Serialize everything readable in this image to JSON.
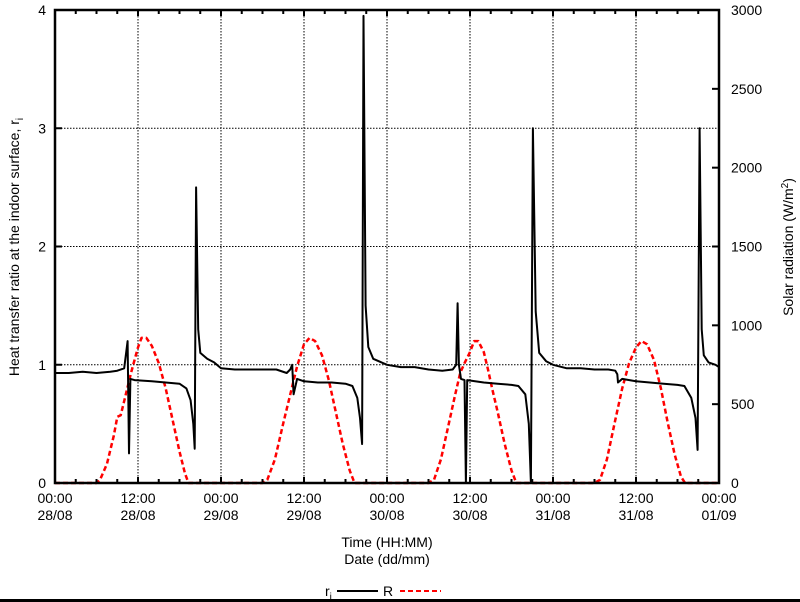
{
  "chart_data": {
    "type": "line",
    "title": "",
    "xlabel": "Time (HH:MM)",
    "xlabel2": "Date (dd/mm)",
    "ylabel": "Heat transfer ratio at the indoor surface, r",
    "ylabel_sub": "i",
    "y2label": "Solar radiation (W/m",
    "y2label_sup": "2",
    "y2label_end": ")",
    "xlim_hours": [
      0,
      96
    ],
    "ylim": [
      0,
      4
    ],
    "y2lim": [
      0,
      3000
    ],
    "grid": true,
    "legend_position": "bottom-center",
    "x_ticks": [
      {
        "hour": 0,
        "time": "00:00",
        "date": "28/08"
      },
      {
        "hour": 12,
        "time": "12:00",
        "date": "28/08"
      },
      {
        "hour": 24,
        "time": "00:00",
        "date": "29/08"
      },
      {
        "hour": 36,
        "time": "12:00",
        "date": "29/08"
      },
      {
        "hour": 48,
        "time": "00:00",
        "date": "30/08"
      },
      {
        "hour": 60,
        "time": "12:00",
        "date": "30/08"
      },
      {
        "hour": 72,
        "time": "00:00",
        "date": "31/08"
      },
      {
        "hour": 84,
        "time": "12:00",
        "date": "31/08"
      },
      {
        "hour": 96,
        "time": "00:00",
        "date": "01/09"
      }
    ],
    "y_ticks": [
      "0",
      "1",
      "2",
      "3",
      "4"
    ],
    "y2_ticks": [
      "0",
      "500",
      "1000",
      "1500",
      "2000",
      "2500",
      "3000"
    ],
    "series": [
      {
        "name": "r",
        "name_sub": "i",
        "axis": "left",
        "color": "#000000",
        "style": "solid",
        "points": [
          [
            0,
            0.93
          ],
          [
            2,
            0.93
          ],
          [
            4,
            0.94
          ],
          [
            6,
            0.93
          ],
          [
            8,
            0.94
          ],
          [
            9,
            0.95
          ],
          [
            10,
            0.97
          ],
          [
            10.5,
            1.2
          ],
          [
            10.7,
            0.25
          ],
          [
            10.9,
            0.88
          ],
          [
            11.5,
            0.87
          ],
          [
            14,
            0.86
          ],
          [
            16,
            0.85
          ],
          [
            18,
            0.84
          ],
          [
            19,
            0.8
          ],
          [
            19.6,
            0.7
          ],
          [
            20,
            0.5
          ],
          [
            20.2,
            0.29
          ],
          [
            20.4,
            2.5
          ],
          [
            20.7,
            1.3
          ],
          [
            21,
            1.1
          ],
          [
            22,
            1.05
          ],
          [
            23,
            1.02
          ],
          [
            24,
            0.97
          ],
          [
            26,
            0.96
          ],
          [
            28,
            0.96
          ],
          [
            30,
            0.96
          ],
          [
            32,
            0.96
          ],
          [
            33.5,
            0.93
          ],
          [
            34,
            0.96
          ],
          [
            34.3,
            1.0
          ],
          [
            34.5,
            0.75
          ],
          [
            35,
            0.88
          ],
          [
            36,
            0.86
          ],
          [
            38,
            0.85
          ],
          [
            40,
            0.85
          ],
          [
            42,
            0.84
          ],
          [
            43,
            0.82
          ],
          [
            43.7,
            0.72
          ],
          [
            44.1,
            0.55
          ],
          [
            44.4,
            0.33
          ],
          [
            44.6,
            3.95
          ],
          [
            44.9,
            1.5
          ],
          [
            45.3,
            1.15
          ],
          [
            46,
            1.05
          ],
          [
            48,
            1.0
          ],
          [
            50,
            0.98
          ],
          [
            52,
            0.98
          ],
          [
            54,
            0.96
          ],
          [
            56,
            0.95
          ],
          [
            57.5,
            0.96
          ],
          [
            58,
            1.0
          ],
          [
            58.2,
            1.52
          ],
          [
            58.4,
            1.0
          ],
          [
            58.7,
            0.88
          ],
          [
            59.2,
            0.87
          ],
          [
            59.4,
            0
          ],
          [
            59.6,
            0.87
          ],
          [
            62,
            0.85
          ],
          [
            64,
            0.84
          ],
          [
            66,
            0.83
          ],
          [
            67,
            0.82
          ],
          [
            68,
            0.75
          ],
          [
            68.5,
            0.5
          ],
          [
            68.8,
            0
          ],
          [
            69.1,
            3.0
          ],
          [
            69.5,
            1.45
          ],
          [
            70,
            1.1
          ],
          [
            71,
            1.03
          ],
          [
            72,
            1.0
          ],
          [
            74,
            0.97
          ],
          [
            76,
            0.97
          ],
          [
            78,
            0.96
          ],
          [
            80,
            0.96
          ],
          [
            81,
            0.95
          ],
          [
            81.3,
            0.92
          ],
          [
            81.4,
            0.85
          ],
          [
            82,
            0.88
          ],
          [
            84,
            0.86
          ],
          [
            86,
            0.85
          ],
          [
            88,
            0.84
          ],
          [
            90,
            0.83
          ],
          [
            91,
            0.82
          ],
          [
            92,
            0.72
          ],
          [
            92.6,
            0.55
          ],
          [
            92.9,
            0.28
          ],
          [
            93.2,
            3.0
          ],
          [
            93.5,
            1.3
          ],
          [
            93.8,
            1.08
          ],
          [
            94.5,
            1.02
          ],
          [
            95.5,
            1.0
          ],
          [
            96,
            0.98
          ]
        ]
      },
      {
        "name": "R",
        "axis": "right",
        "color": "#ff0000",
        "style": "dashed",
        "points": [
          [
            0,
            0
          ],
          [
            6,
            0
          ],
          [
            6.5,
            20
          ],
          [
            7.5,
            120
          ],
          [
            8.5,
            300
          ],
          [
            9,
            420
          ],
          [
            9.5,
            430
          ],
          [
            10,
            520
          ],
          [
            11,
            700
          ],
          [
            12,
            860
          ],
          [
            12.5,
            920
          ],
          [
            13.2,
            920
          ],
          [
            14,
            870
          ],
          [
            15,
            760
          ],
          [
            16,
            600
          ],
          [
            17,
            400
          ],
          [
            18,
            200
          ],
          [
            18.8,
            60
          ],
          [
            19.3,
            0
          ],
          [
            30,
            0
          ],
          [
            30.7,
            20
          ],
          [
            31.8,
            150
          ],
          [
            33,
            380
          ],
          [
            34,
            560
          ],
          [
            35,
            740
          ],
          [
            36,
            880
          ],
          [
            36.8,
            920
          ],
          [
            37.6,
            900
          ],
          [
            38.6,
            810
          ],
          [
            39.6,
            650
          ],
          [
            40.6,
            450
          ],
          [
            41.6,
            250
          ],
          [
            42.6,
            80
          ],
          [
            43.3,
            0
          ],
          [
            54,
            0
          ],
          [
            54.8,
            20
          ],
          [
            55.8,
            150
          ],
          [
            56.8,
            350
          ],
          [
            57.8,
            550
          ],
          [
            58.6,
            700
          ],
          [
            59.2,
            760
          ],
          [
            60,
            830
          ],
          [
            60.6,
            900
          ],
          [
            61.2,
            900
          ],
          [
            62,
            830
          ],
          [
            62.6,
            720
          ],
          [
            63.2,
            600
          ],
          [
            64,
            450
          ],
          [
            65,
            250
          ],
          [
            66,
            80
          ],
          [
            66.7,
            0
          ],
          [
            78,
            0
          ],
          [
            78.8,
            20
          ],
          [
            79.8,
            150
          ],
          [
            81,
            400
          ],
          [
            82,
            600
          ],
          [
            83,
            760
          ],
          [
            84,
            860
          ],
          [
            84.8,
            900
          ],
          [
            85.6,
            880
          ],
          [
            86.6,
            780
          ],
          [
            87.6,
            600
          ],
          [
            88.6,
            380
          ],
          [
            89.6,
            180
          ],
          [
            90.5,
            40
          ],
          [
            91.1,
            0
          ],
          [
            96,
            0
          ]
        ]
      }
    ]
  },
  "legend": {
    "ri_label": "r",
    "ri_sub": "i",
    "R_label": "R"
  }
}
